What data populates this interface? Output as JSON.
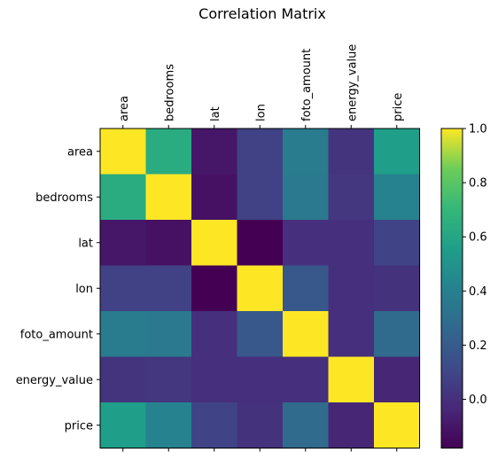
{
  "chart_data": {
    "type": "heatmap",
    "title": "Correlation Matrix",
    "variables": [
      "area",
      "bedrooms",
      "lat",
      "lon",
      "foto_amount",
      "energy_value",
      "price"
    ],
    "values": [
      [
        1.0,
        0.64,
        -0.1,
        0.08,
        0.37,
        0.02,
        0.56
      ],
      [
        0.64,
        1.0,
        -0.12,
        0.08,
        0.36,
        0.03,
        0.41
      ],
      [
        -0.1,
        -0.12,
        1.0,
        -0.18,
        0.0,
        0.0,
        0.09
      ],
      [
        0.08,
        0.08,
        -0.18,
        1.0,
        0.18,
        0.0,
        0.01
      ],
      [
        0.37,
        0.36,
        0.0,
        0.18,
        1.0,
        0.0,
        0.28
      ],
      [
        0.02,
        0.03,
        0.0,
        0.0,
        0.0,
        1.0,
        -0.04
      ],
      [
        0.56,
        0.41,
        0.09,
        0.01,
        0.28,
        -0.04,
        1.0
      ]
    ],
    "colormap": "viridis",
    "colorbar": {
      "vmin": -0.18,
      "vmax": 1.0,
      "ticks": [
        0.0,
        0.2,
        0.4,
        0.6,
        0.8,
        1.0
      ],
      "tick_labels": [
        "0.0",
        "0.2",
        "0.4",
        "0.6",
        "0.8",
        "1.0"
      ]
    },
    "x_tick_position": "top",
    "x_tick_rotation": "vertical",
    "grid": false
  }
}
